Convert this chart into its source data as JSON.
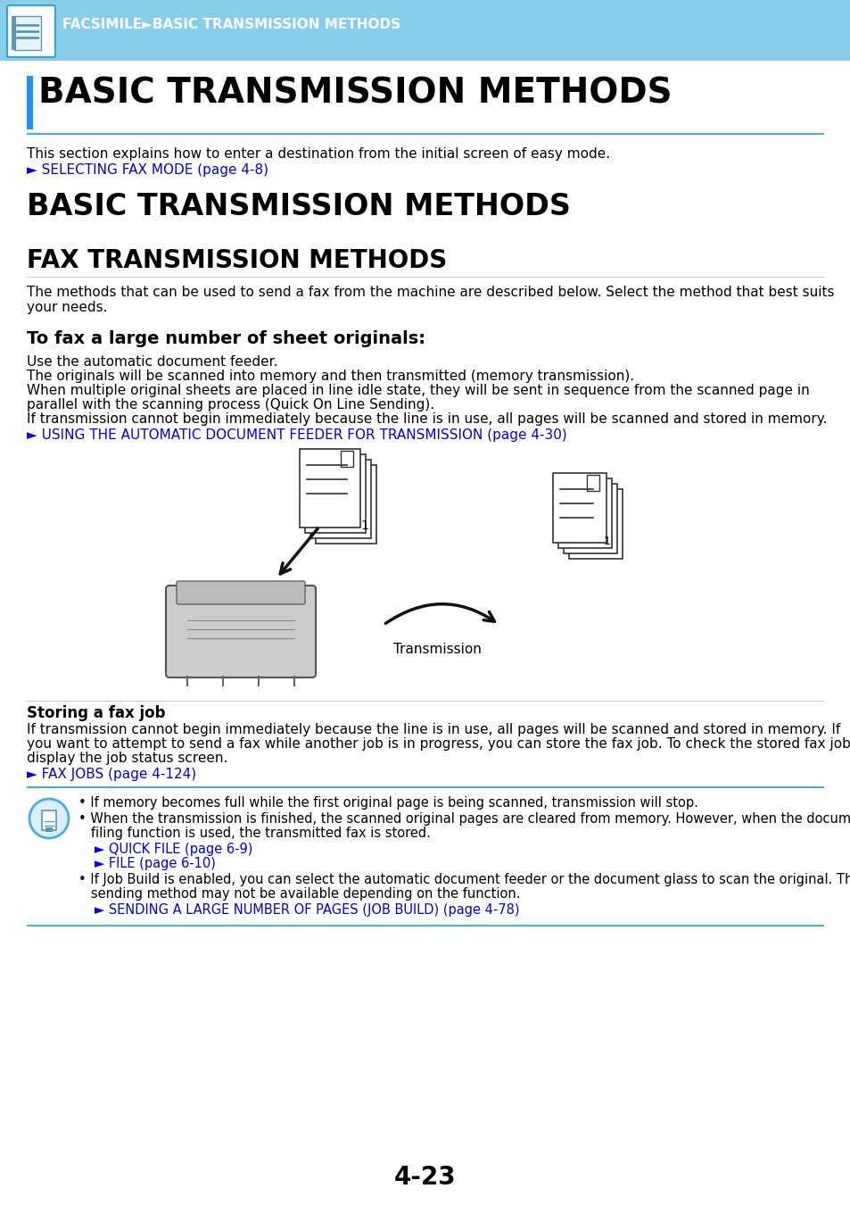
{
  "header_bg": "#87CEEB",
  "header_text": "FACSIMILE►BASIC TRANSMISSION METHODS",
  "header_text_color": "#FFFFFF",
  "title1_text": "BASIC TRANSMISSION METHODS",
  "title1_bar_color": "#1E90FF",
  "title1_underline_color": "#42B0E8",
  "intro_text": "This section explains how to enter a destination from the initial screen of easy mode.",
  "intro_link": "► SELECTING FAX MODE (page 4-8)",
  "link_color": "#0000EE",
  "title2_text": "BASIC TRANSMISSION METHODS",
  "title3_text": "FAX TRANSMISSION METHODS",
  "fax_intro_1": "The methods that can be used to send a fax from the machine are described below. Select the method that best suits",
  "fax_intro_2": "your needs.",
  "subsection_title": "To fax a large number of sheet originals:",
  "body_line1": "Use the automatic document feeder.",
  "body_line2": "The originals will be scanned into memory and then transmitted (memory transmission).",
  "body_line3a": "When multiple original sheets are placed in line idle state, they will be sent in sequence from the scanned page in",
  "body_line3b": "parallel with the scanning process (Quick On Line Sending).",
  "body_line4": "If transmission cannot begin immediately because the line is in use, all pages will be scanned and stored in memory.",
  "auto_feeder_link": "► USING THE AUTOMATIC DOCUMENT FEEDER FOR TRANSMISSION (page 4-30)",
  "storing_title": "Storing a fax job",
  "storing_body1": "If transmission cannot begin immediately because the line is in use, all pages will be scanned and stored in memory. If",
  "storing_body2": "you want to attempt to send a fax while another job is in progress, you can store the fax job. To check the stored fax job,",
  "storing_body3": "display the job status screen.",
  "fax_jobs_link": "► FAX JOBS (page 4-124)",
  "note1": "• If memory becomes full while the first original page is being scanned, transmission will stop.",
  "note2a": "• When the transmission is finished, the scanned original pages are cleared from memory. However, when the document",
  "note2b": "   filing function is used, the transmitted fax is stored.",
  "note_link1": "► QUICK FILE (page 6-9)",
  "note_link2": "► FILE (page 6-10)",
  "note3a": "• If Job Build is enabled, you can select the automatic document feeder or the document glass to scan the original. This",
  "note3b": "   sending method may not be available depending on the function.",
  "note_link3": "► SENDING A LARGE NUMBER OF PAGES (JOB BUILD) (page 4-78)",
  "page_number": "4-23",
  "bg_color": "#FFFFFF",
  "text_color": "#000000",
  "separator_color": "#42B0E8"
}
